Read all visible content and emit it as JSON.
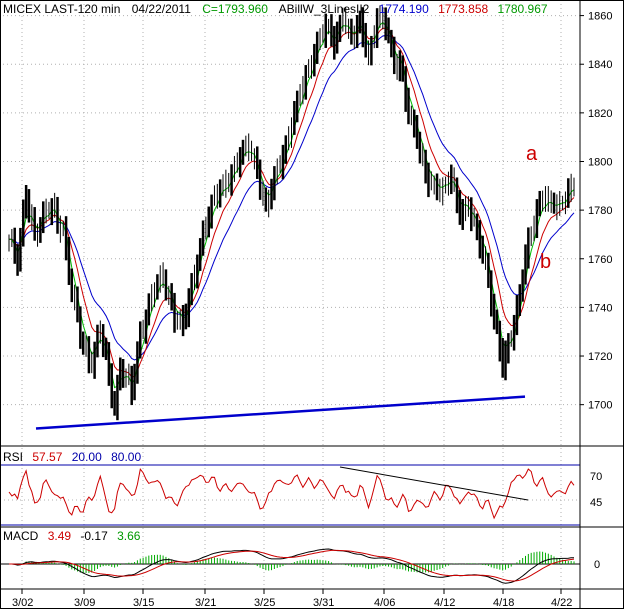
{
  "header": {
    "symbol": "MICEX LAST-120 min",
    "date": "04/22/2011",
    "close": "C=1793.960",
    "indicator_name": "ABillW_3LinesII2",
    "ind_blue": "1774.190",
    "ind_red": "1773.858",
    "ind_green": "1780.967"
  },
  "colors": {
    "price": "#000000",
    "blue": "#0000cc",
    "red": "#cc0000",
    "green": "#00bb00",
    "grid": "#b0b0b0",
    "trend": "#0000cc",
    "rsi_line": "#cc0000",
    "rsi_levels": "#0000aa"
  },
  "annotations": {
    "a": "a",
    "b": "b"
  },
  "rsi": {
    "label": "RSI",
    "value": "57.57",
    "lower": "20.00",
    "upper": "80.00",
    "ticks": [
      "70",
      "45"
    ]
  },
  "macd": {
    "label": "MACD",
    "v1": "3.49",
    "v2": "-0.17",
    "v3": "3.66",
    "ticks": [
      "0"
    ]
  },
  "chart_data": {
    "type": "line",
    "title": "MICEX LAST-120 min",
    "x_ticks": [
      "3/02",
      "3/09",
      "3/15",
      "3/21",
      "3/25",
      "3/31",
      "4/06",
      "4/12",
      "4/18",
      "4/22"
    ],
    "y_ticks": [
      1700,
      1720,
      1740,
      1760,
      1780,
      1800,
      1820,
      1840,
      1860
    ],
    "ylim": [
      1683,
      1866
    ],
    "grid": true,
    "price_anchors": [
      [
        0,
        1768
      ],
      [
        3,
        1758
      ],
      [
        6,
        1788
      ],
      [
        9,
        1770
      ],
      [
        12,
        1776
      ],
      [
        15,
        1782
      ],
      [
        19,
        1772
      ],
      [
        22,
        1745
      ],
      [
        26,
        1725
      ],
      [
        29,
        1718
      ],
      [
        32,
        1730
      ],
      [
        35,
        1712
      ],
      [
        37,
        1700
      ],
      [
        39,
        1716
      ],
      [
        43,
        1705
      ],
      [
        46,
        1730
      ],
      [
        50,
        1745
      ],
      [
        54,
        1752
      ],
      [
        58,
        1738
      ],
      [
        61,
        1732
      ],
      [
        64,
        1748
      ],
      [
        68,
        1772
      ],
      [
        72,
        1784
      ],
      [
        76,
        1792
      ],
      [
        80,
        1800
      ],
      [
        84,
        1806
      ],
      [
        87,
        1798
      ],
      [
        90,
        1780
      ],
      [
        93,
        1792
      ],
      [
        97,
        1808
      ],
      [
        100,
        1820
      ],
      [
        104,
        1834
      ],
      [
        108,
        1850
      ],
      [
        111,
        1855
      ],
      [
        114,
        1848
      ],
      [
        117,
        1862
      ],
      [
        120,
        1850
      ],
      [
        123,
        1856
      ],
      [
        126,
        1844
      ],
      [
        129,
        1860
      ],
      [
        132,
        1855
      ],
      [
        135,
        1840
      ],
      [
        137,
        1842
      ],
      [
        140,
        1820
      ],
      [
        143,
        1808
      ],
      [
        146,
        1796
      ],
      [
        149,
        1790
      ],
      [
        152,
        1786
      ],
      [
        155,
        1795
      ],
      [
        158,
        1780
      ],
      [
        161,
        1780
      ],
      [
        164,
        1770
      ],
      [
        167,
        1760
      ],
      [
        170,
        1735
      ],
      [
        173,
        1715
      ],
      [
        175,
        1725
      ],
      [
        178,
        1740
      ],
      [
        181,
        1760
      ],
      [
        184,
        1775
      ],
      [
        187,
        1788
      ],
      [
        190,
        1782
      ],
      [
        193,
        1780
      ],
      [
        196,
        1789
      ],
      [
        198,
        1792
      ]
    ],
    "trend_line": {
      "from": [
        "3/02",
        1691
      ],
      "to": [
        "4/20",
        1693
      ]
    },
    "series": [
      {
        "role": "price-bars"
      },
      {
        "role": "blue-line",
        "value": 1774.19
      },
      {
        "role": "red-line",
        "value": 1773.858
      },
      {
        "role": "green-line",
        "value": 1780.967
      }
    ]
  }
}
